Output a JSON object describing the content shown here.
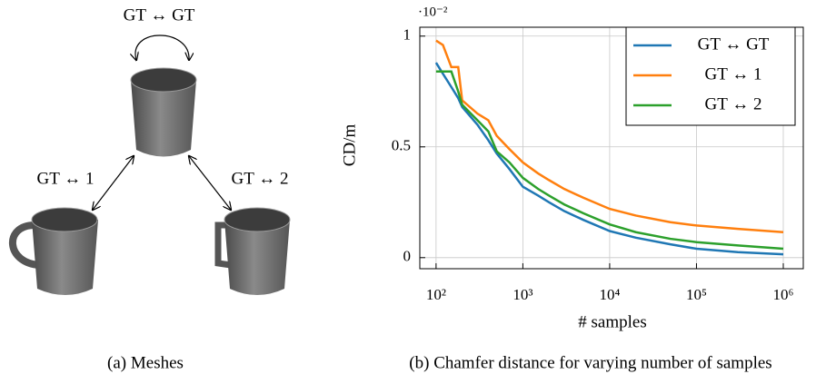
{
  "meshes": {
    "labels": [
      "GT ↔ GT",
      "GT ↔ 1",
      "GT ↔ 2"
    ],
    "caption": "(a) Meshes"
  },
  "chart_data": {
    "type": "line",
    "caption": "(b) Chamfer distance for varying number of samples",
    "x_label": "# samples",
    "y_label": "CD/m",
    "y_scale_label": "·10⁻²",
    "x": [
      100,
      120,
      150,
      180,
      200,
      300,
      400,
      500,
      700,
      1000,
      1500,
      2000,
      3000,
      5000,
      10000,
      20000,
      50000,
      100000,
      300000,
      1000000
    ],
    "series": [
      {
        "name": "GT ↔ GT",
        "color": "#1f77b4",
        "values": [
          0.88,
          0.83,
          0.77,
          0.72,
          0.68,
          0.6,
          0.53,
          0.47,
          0.4,
          0.32,
          0.28,
          0.25,
          0.21,
          0.17,
          0.12,
          0.09,
          0.06,
          0.04,
          0.025,
          0.015
        ]
      },
      {
        "name": "GT ↔ 1",
        "color": "#ff7f0e",
        "values": [
          0.98,
          0.96,
          0.86,
          0.86,
          0.71,
          0.65,
          0.62,
          0.55,
          0.49,
          0.43,
          0.38,
          0.35,
          0.31,
          0.27,
          0.22,
          0.19,
          0.16,
          0.145,
          0.13,
          0.115
        ]
      },
      {
        "name": "GT ↔ 2",
        "color": "#2ca02c",
        "values": [
          0.84,
          0.84,
          0.84,
          0.75,
          0.69,
          0.62,
          0.57,
          0.48,
          0.43,
          0.36,
          0.31,
          0.28,
          0.24,
          0.2,
          0.15,
          0.115,
          0.085,
          0.07,
          0.055,
          0.04
        ]
      }
    ],
    "xscale": "log",
    "xlim": [
      65,
      1700000
    ],
    "xticks": [
      {
        "value": 100,
        "label": "10²"
      },
      {
        "value": 1000,
        "label": "10³"
      },
      {
        "value": 10000,
        "label": "10⁴"
      },
      {
        "value": 100000,
        "label": "10⁵"
      },
      {
        "value": 1000000,
        "label": "10⁶"
      }
    ],
    "ylim": [
      -0.05,
      1.04
    ],
    "yticks": [
      0,
      0.5,
      1
    ],
    "grid": true,
    "legend": "upper-right"
  }
}
